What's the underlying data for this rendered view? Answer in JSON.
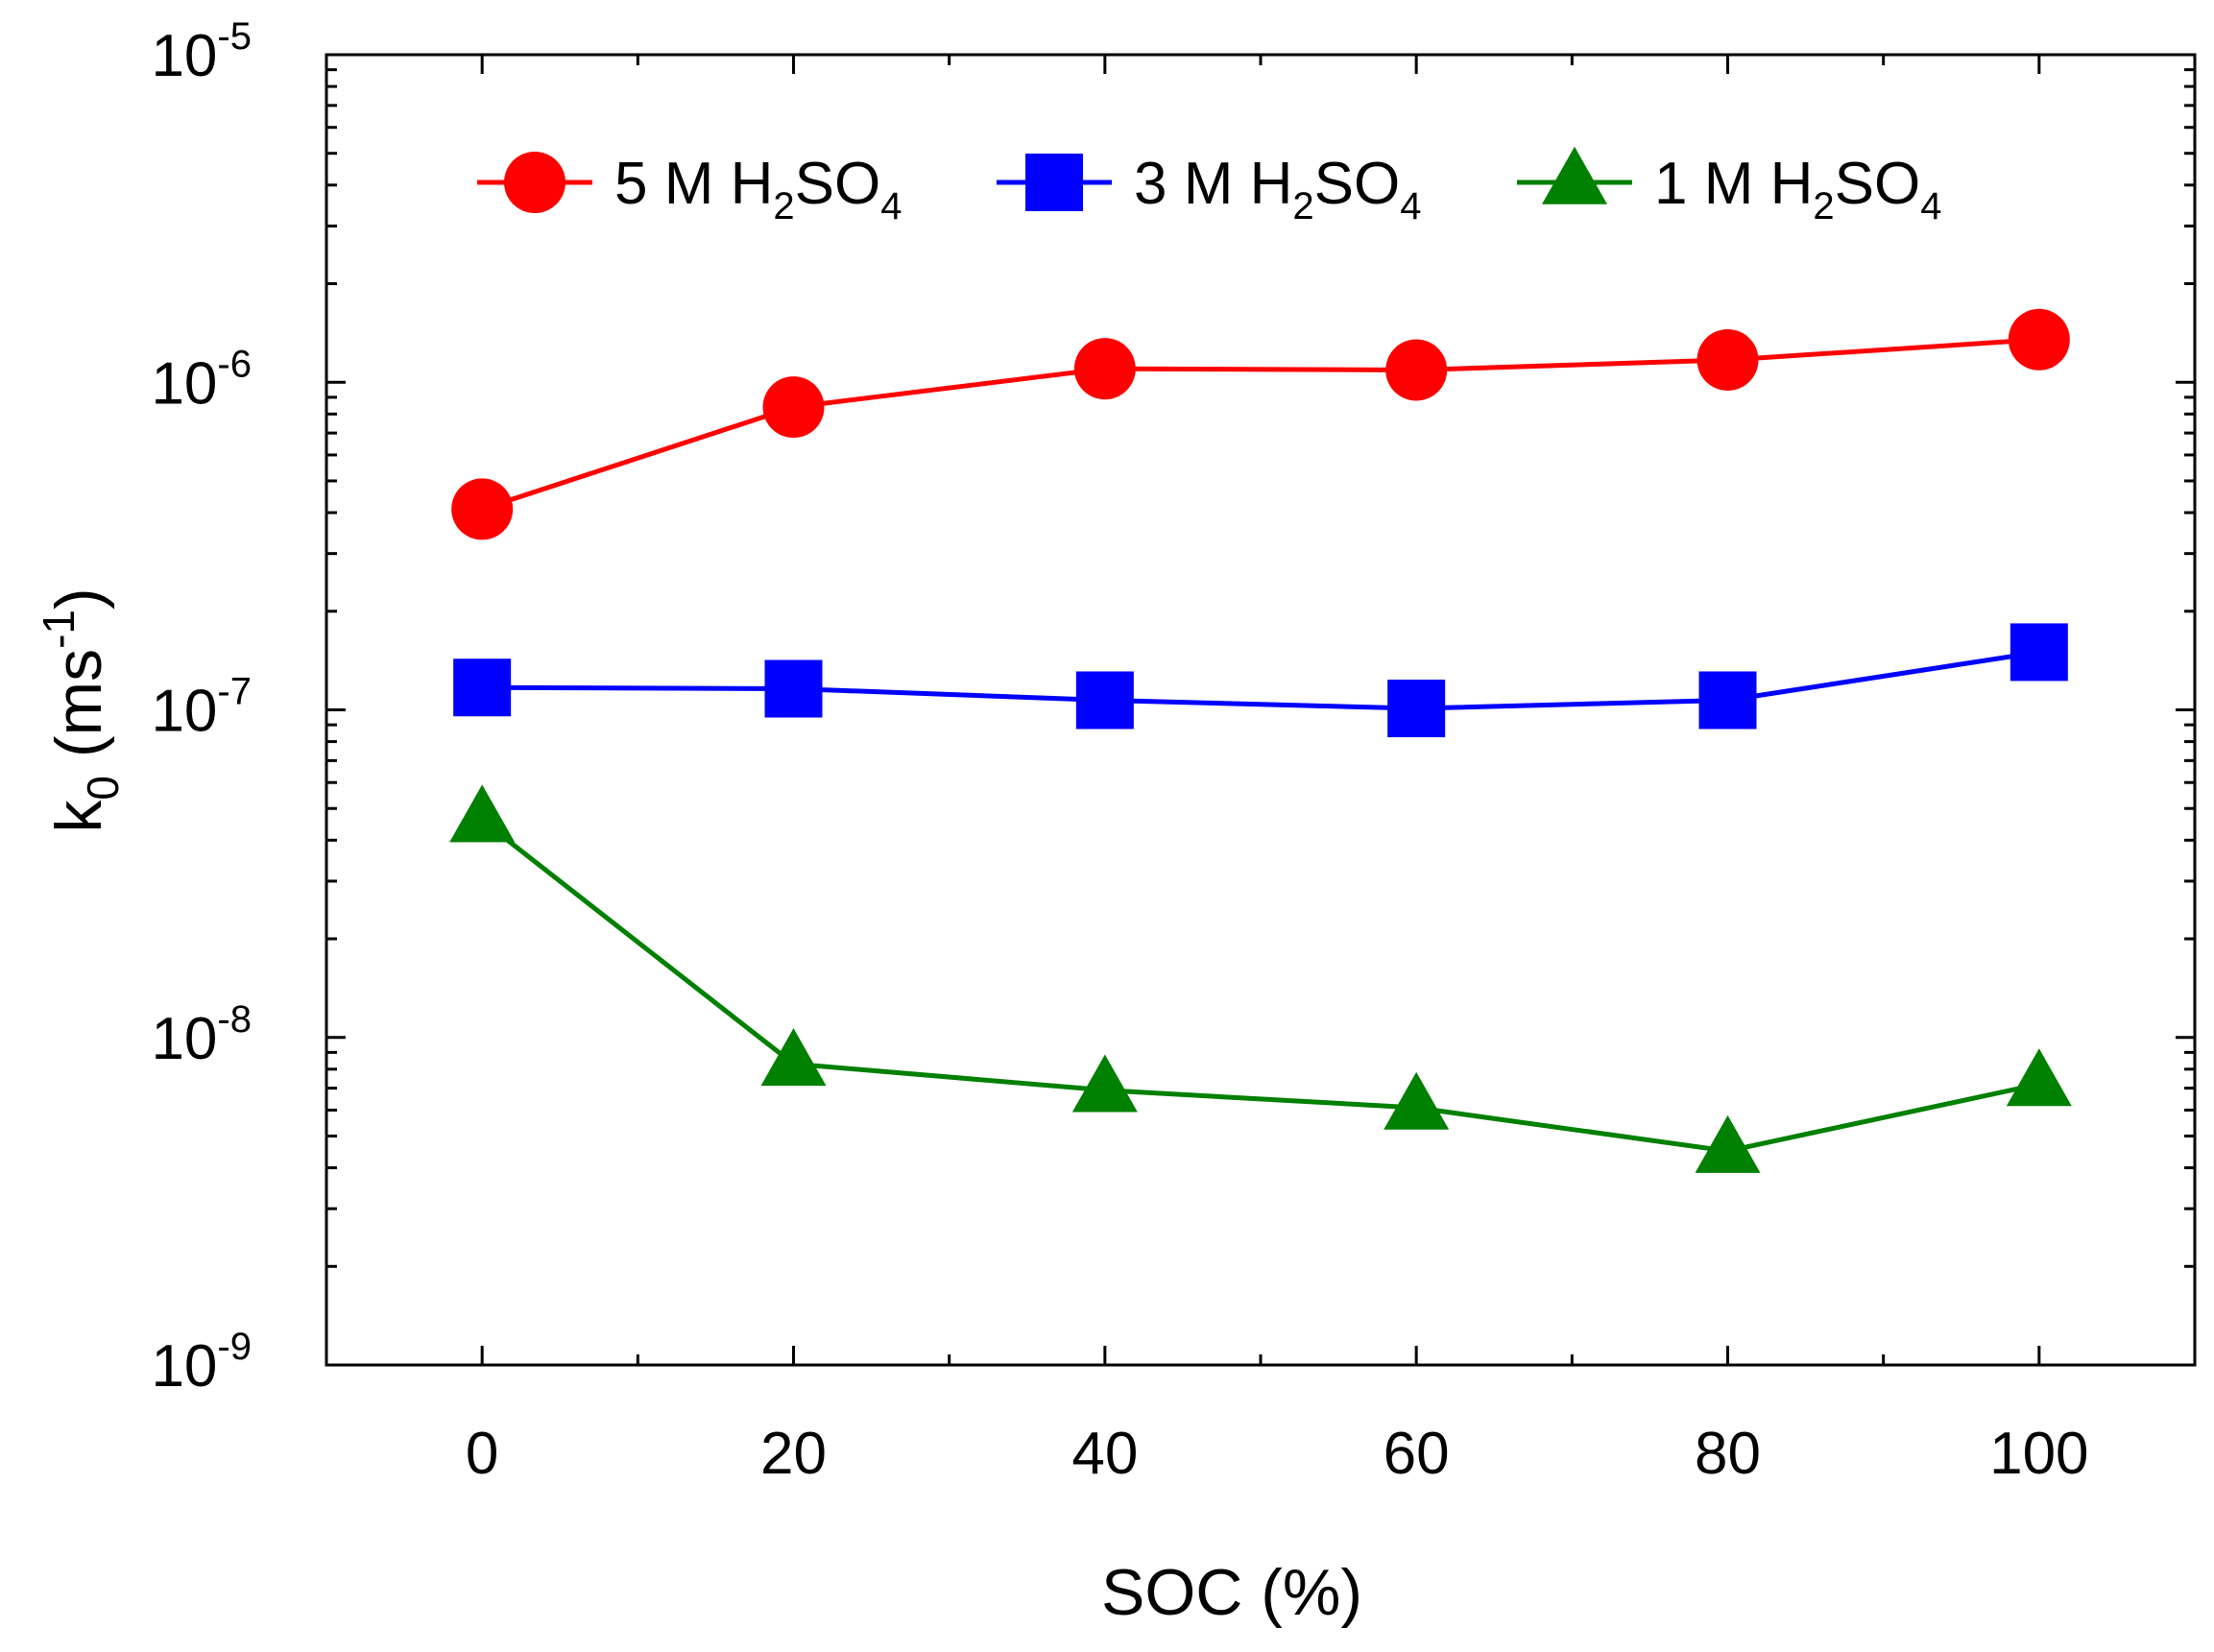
{
  "chart_data": {
    "type": "line",
    "yscale": "log",
    "xlim": [
      -10,
      110
    ],
    "ylim": [
      1e-09,
      1e-05
    ],
    "x_ticks": [
      "0",
      "20",
      "40",
      "60",
      "80",
      "100"
    ],
    "y_ticks": [
      {
        "base": "10",
        "exp": "-9"
      },
      {
        "base": "10",
        "exp": "-8"
      },
      {
        "base": "10",
        "exp": "-7"
      },
      {
        "base": "10",
        "exp": "-6"
      },
      {
        "base": "10",
        "exp": "-5"
      }
    ],
    "xlabel": "SOC (%)",
    "ylabel": {
      "main": "k",
      "sub": "0",
      "unit_open": " (ms",
      "sup": "-1",
      "unit_close": ")"
    },
    "legend_position": "top",
    "series": [
      {
        "name": "5 M H2SO4",
        "label_parts": [
          "5 M H",
          "2",
          "SO",
          "4"
        ],
        "color": "#ff0000",
        "marker": "circle",
        "x": [
          0,
          20,
          40,
          60,
          80,
          100
        ],
        "y": [
          4.1e-07,
          8.4e-07,
          1.1e-06,
          1.09e-06,
          1.17e-06,
          1.35e-06
        ]
      },
      {
        "name": "3 M H2SO4",
        "label_parts": [
          "3 M H",
          "2",
          "SO",
          "4"
        ],
        "color": "#0000ff",
        "marker": "square",
        "x": [
          0,
          20,
          40,
          60,
          80,
          100
        ],
        "y": [
          1.17e-07,
          1.16e-07,
          1.07e-07,
          1.01e-07,
          1.07e-07,
          1.5e-07
        ]
      },
      {
        "name": "1 M H2SO4",
        "label_parts": [
          "1 M H",
          "2",
          "SO",
          "4"
        ],
        "color": "#008000",
        "marker": "triangle",
        "x": [
          0,
          20,
          40,
          60,
          80,
          100
        ],
        "y": [
          4.6e-08,
          8.3e-09,
          6.9e-09,
          6.1e-09,
          4.5e-09,
          7.2e-09
        ]
      }
    ]
  }
}
